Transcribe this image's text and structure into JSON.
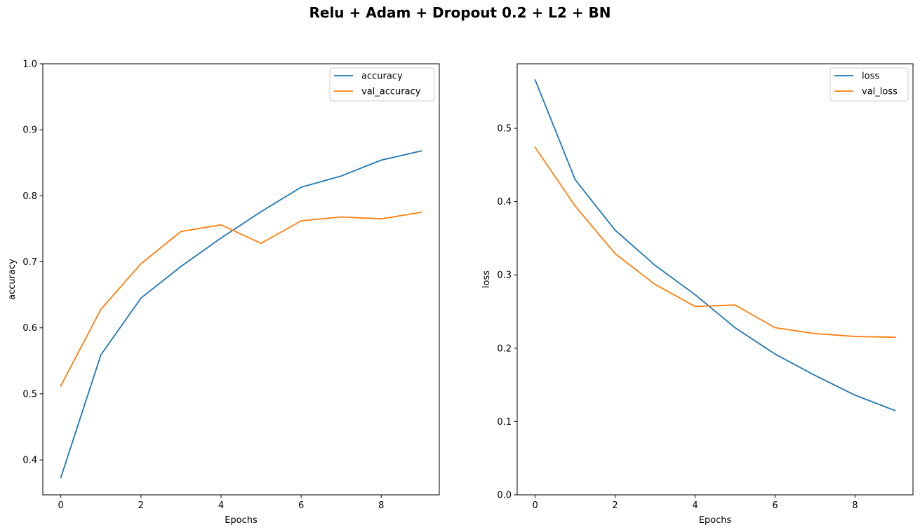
{
  "figure": {
    "title": "Relu + Adam + Dropout 0.2 + L2 + BN"
  },
  "colors": {
    "series1": "#1f77b4",
    "series2": "#ff7f0e"
  },
  "chart_data": [
    {
      "type": "line",
      "xlabel": "Epochs",
      "ylabel": "accuracy",
      "xlim": [
        -0.45,
        9.45
      ],
      "ylim": [
        0.347,
        1.0
      ],
      "xticks": [
        0,
        2,
        4,
        6,
        8
      ],
      "yticks": [
        0.4,
        0.5,
        0.6,
        0.7,
        0.8,
        0.9,
        1.0
      ],
      "legend": "top-right",
      "x": [
        0,
        1,
        2,
        3,
        4,
        5,
        6,
        7,
        8,
        9
      ],
      "series": [
        {
          "name": "accuracy",
          "values": [
            0.373,
            0.559,
            0.645,
            0.693,
            0.736,
            0.776,
            0.813,
            0.83,
            0.854,
            0.868
          ]
        },
        {
          "name": "val_accuracy",
          "values": [
            0.512,
            0.628,
            0.697,
            0.746,
            0.756,
            0.728,
            0.762,
            0.768,
            0.765,
            0.775
          ]
        }
      ]
    },
    {
      "type": "line",
      "xlabel": "Epochs",
      "ylabel": "loss",
      "xlim": [
        -0.45,
        9.45
      ],
      "ylim": [
        0.0,
        0.588
      ],
      "xticks": [
        0,
        2,
        4,
        6,
        8
      ],
      "yticks": [
        0.0,
        0.1,
        0.2,
        0.3,
        0.4,
        0.5
      ],
      "legend": "top-right",
      "x": [
        0,
        1,
        2,
        3,
        4,
        5,
        6,
        7,
        8,
        9
      ],
      "series": [
        {
          "name": "loss",
          "values": [
            0.566,
            0.43,
            0.361,
            0.313,
            0.273,
            0.228,
            0.192,
            0.163,
            0.136,
            0.115
          ]
        },
        {
          "name": "val_loss",
          "values": [
            0.474,
            0.394,
            0.329,
            0.287,
            0.257,
            0.259,
            0.228,
            0.22,
            0.216,
            0.215
          ]
        }
      ]
    }
  ]
}
